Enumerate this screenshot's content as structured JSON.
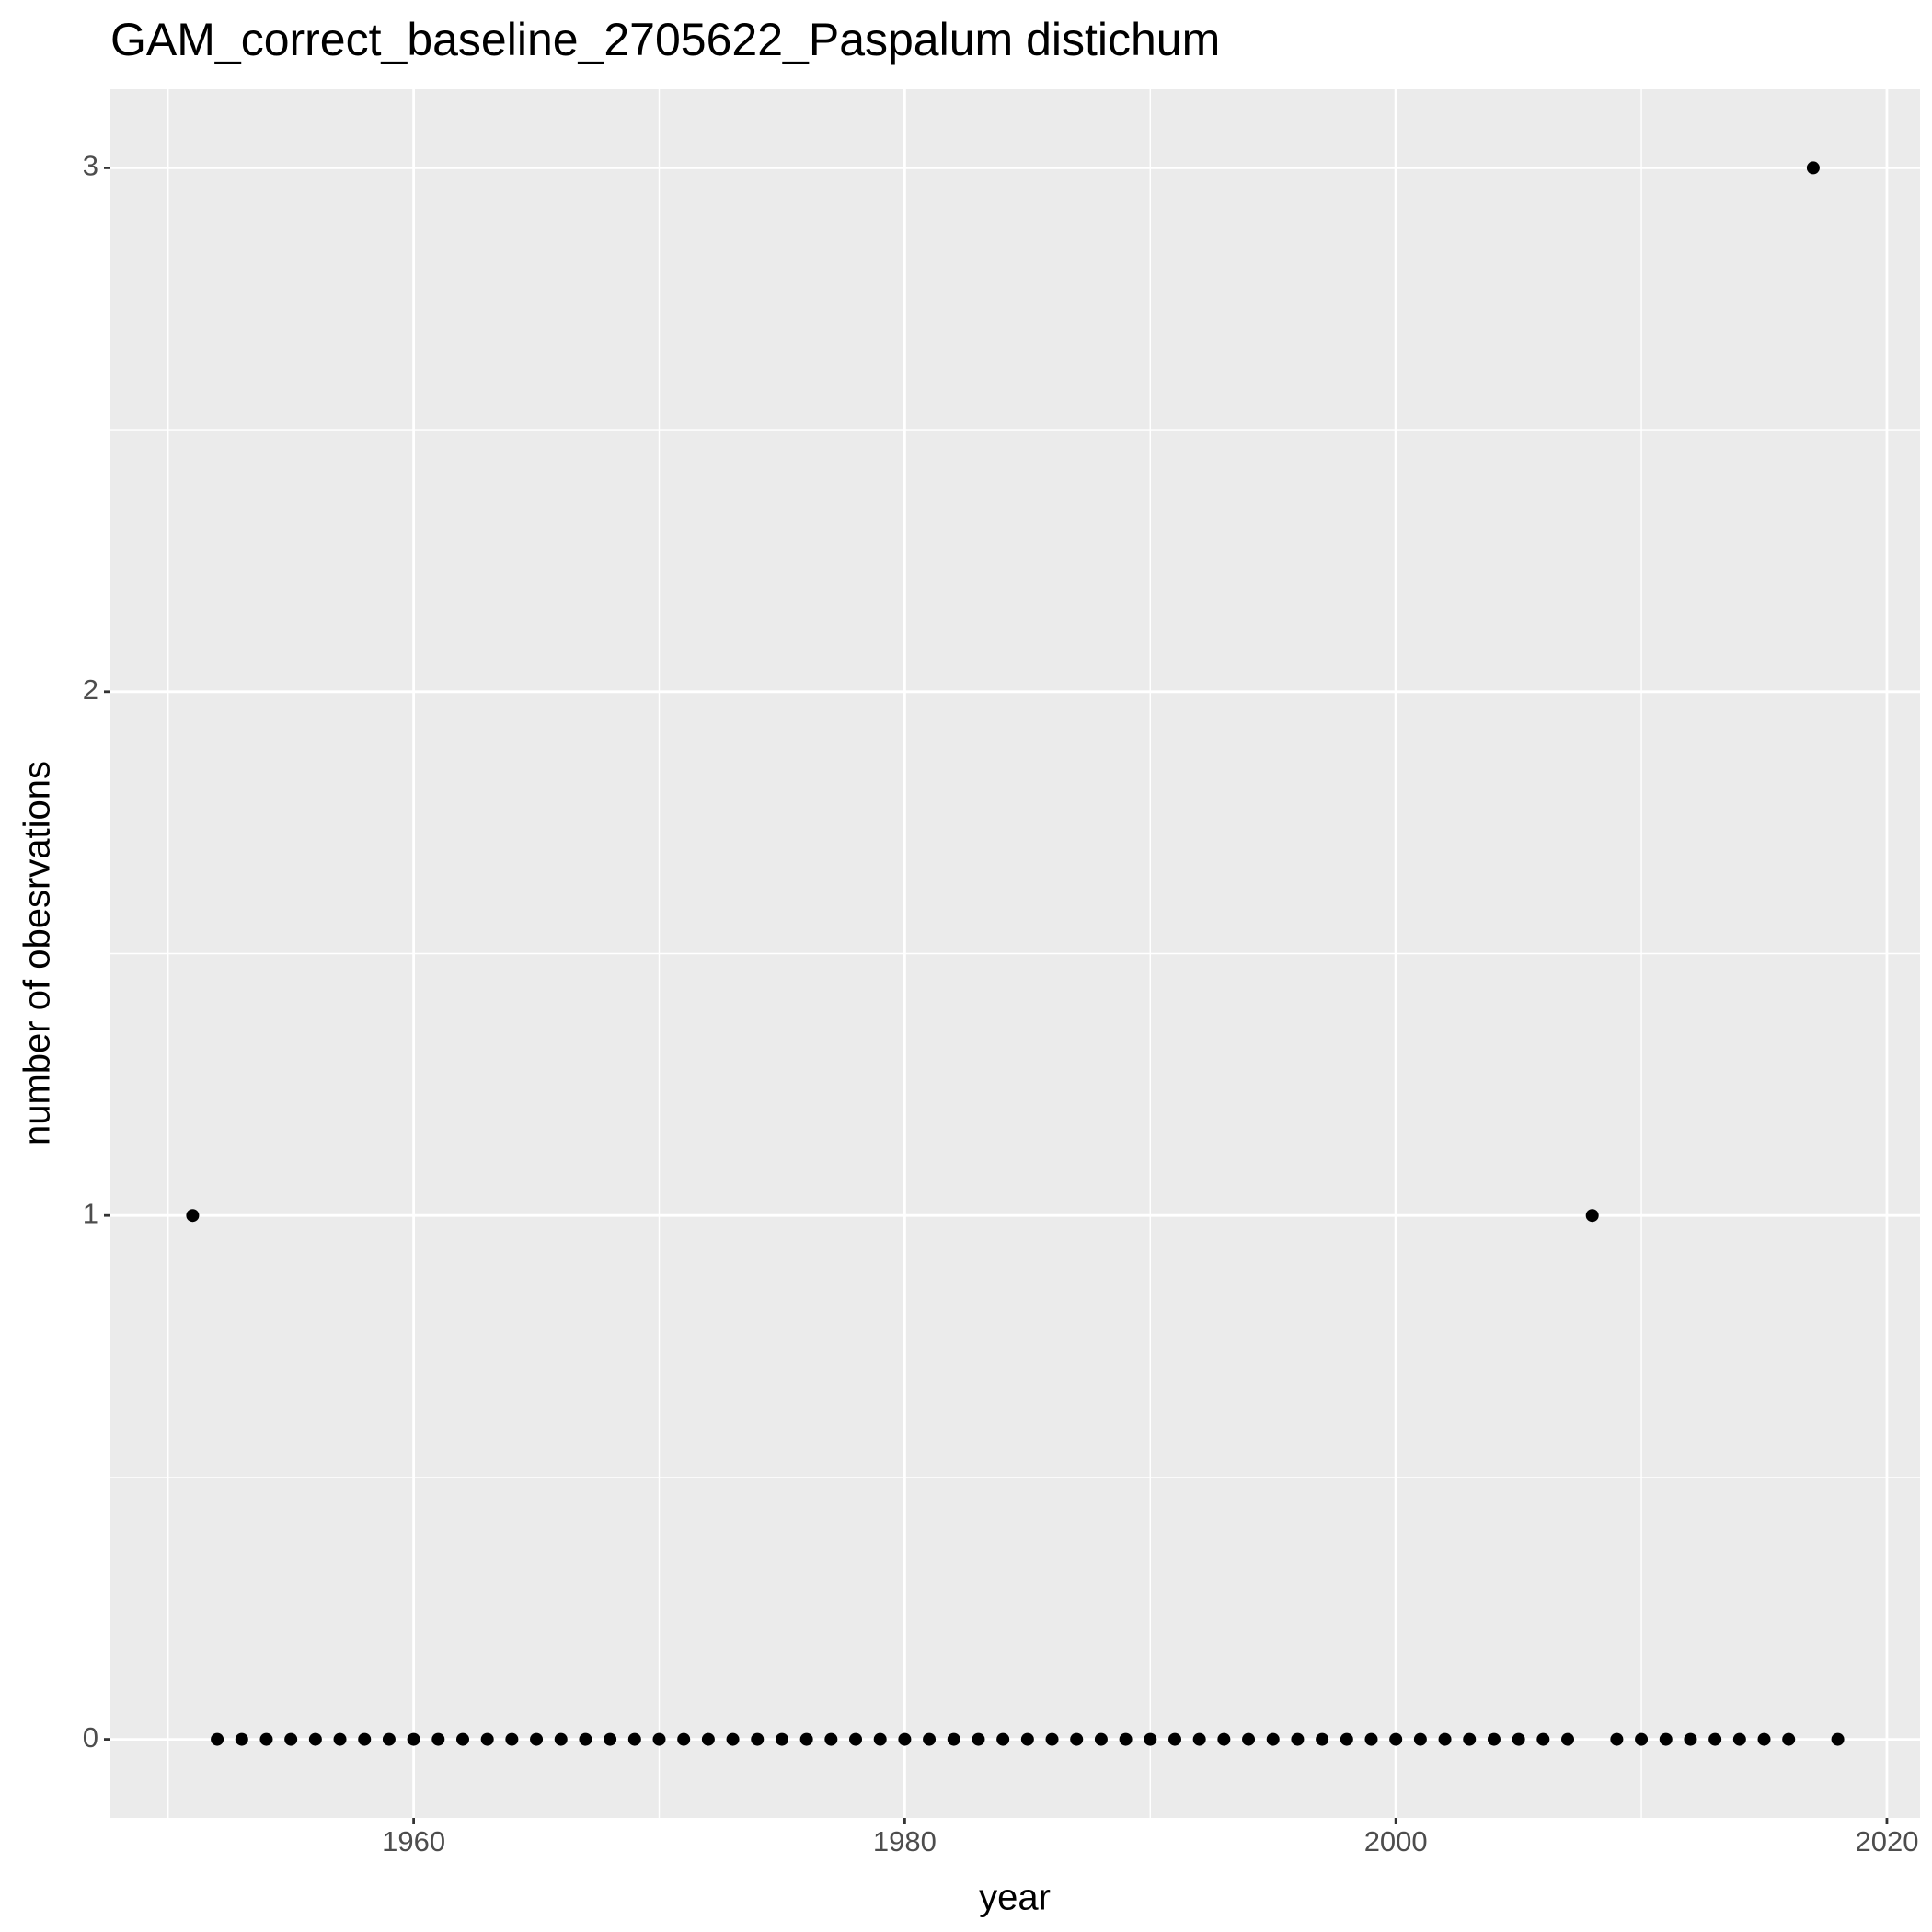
{
  "chart_data": {
    "type": "scatter",
    "title": "GAM_correct_baseline_2705622_Paspalum distichum",
    "x_label": "year",
    "y_label": "number of obesrvations",
    "x": [
      1951,
      1952,
      1953,
      1954,
      1955,
      1956,
      1957,
      1958,
      1959,
      1960,
      1961,
      1962,
      1963,
      1964,
      1965,
      1966,
      1967,
      1968,
      1969,
      1970,
      1971,
      1972,
      1973,
      1974,
      1975,
      1976,
      1977,
      1978,
      1979,
      1980,
      1981,
      1982,
      1983,
      1984,
      1985,
      1986,
      1987,
      1988,
      1989,
      1990,
      1991,
      1992,
      1993,
      1994,
      1995,
      1996,
      1997,
      1998,
      1999,
      2000,
      2001,
      2002,
      2003,
      2004,
      2005,
      2006,
      2007,
      2008,
      2009,
      2010,
      2011,
      2012,
      2013,
      2014,
      2015,
      2016,
      2017,
      2018
    ],
    "values": [
      1,
      0,
      0,
      0,
      0,
      0,
      0,
      0,
      0,
      0,
      0,
      0,
      0,
      0,
      0,
      0,
      0,
      0,
      0,
      0,
      0,
      0,
      0,
      0,
      0,
      0,
      0,
      0,
      0,
      0,
      0,
      0,
      0,
      0,
      0,
      0,
      0,
      0,
      0,
      0,
      0,
      0,
      0,
      0,
      0,
      0,
      0,
      0,
      0,
      0,
      0,
      0,
      0,
      0,
      0,
      0,
      0,
      1,
      0,
      0,
      0,
      0,
      0,
      0,
      0,
      0,
      3,
      0
    ],
    "color": "#000000",
    "xlim": [
      1947.65,
      2021.35
    ],
    "ylim": [
      -0.15,
      3.15
    ],
    "xticks": [
      1960,
      1980,
      2000,
      2020
    ],
    "yticks": [
      0,
      1,
      2,
      3
    ],
    "x_minor_ticks": [
      1950,
      1970,
      1990,
      2010
    ],
    "y_minor_ticks": [
      0.5,
      1.5,
      2.5
    ],
    "grid": true
  }
}
